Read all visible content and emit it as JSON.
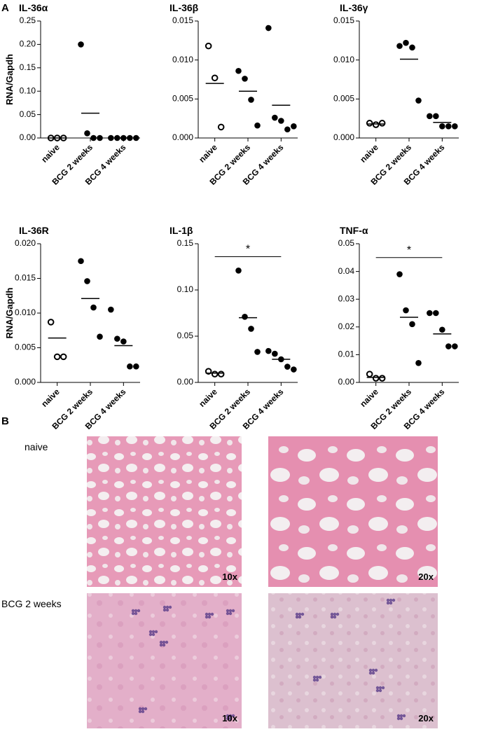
{
  "panel_labels": [
    "A",
    "B"
  ],
  "chart_data": [
    {
      "type": "dot",
      "title": "IL-36α",
      "ylabel": "RNA/Gapdh",
      "categories": [
        "naive",
        "BCG 2 weeks",
        "BCG 4 weeks"
      ],
      "hollow": [
        true,
        false,
        false
      ],
      "values": [
        [
          0,
          0,
          0
        ],
        [
          0.2,
          0.01,
          0,
          0
        ],
        [
          0,
          0,
          0,
          0,
          0
        ]
      ],
      "means": [
        0,
        0.053,
        0
      ],
      "ylim": [
        0,
        0.25
      ],
      "yticks": [
        {
          "value": 0,
          "label": "0.00"
        },
        0.05,
        {
          "value": 0.1,
          "label": "0.10"
        },
        0.15,
        {
          "value": 0.2,
          "label": "0.20"
        },
        0.25
      ]
    },
    {
      "type": "dot",
      "title": "IL-36β",
      "categories": [
        "naive",
        "BCG 2 weeks",
        "BCG 4 weeks"
      ],
      "hollow": [
        true,
        false,
        false
      ],
      "values": [
        [
          0.0118,
          0.0077,
          0.0014
        ],
        [
          0.0086,
          0.0076,
          0.0049,
          0.0016
        ],
        [
          0.0141,
          0.0026,
          0.0022,
          0.0011,
          0.0015
        ]
      ],
      "means": [
        0.007,
        0.006,
        0.0042
      ],
      "ylim": [
        0,
        0.015
      ],
      "yticks": [
        {
          "value": 0,
          "label": "0.000"
        },
        0.005,
        {
          "value": 0.01,
          "label": "0.010"
        },
        0.015
      ]
    },
    {
      "type": "dot",
      "title": "IL-36γ",
      "categories": [
        "naive",
        "BCG 2 weeks",
        "BCG 4 weeks"
      ],
      "hollow": [
        true,
        false,
        false
      ],
      "values": [
        [
          0.0019,
          0.0017,
          0.0019
        ],
        [
          0.0118,
          0.0122,
          0.0116,
          0.0048
        ],
        [
          0.0028,
          0.0028,
          0.0015,
          0.0015,
          0.0015
        ]
      ],
      "means": [
        0.0018,
        0.0101,
        0.002
      ],
      "ylim": [
        0,
        0.015
      ],
      "yticks": [
        {
          "value": 0,
          "label": "0.000"
        },
        0.005,
        {
          "value": 0.01,
          "label": "0.010"
        },
        0.015
      ]
    },
    {
      "type": "dot",
      "title": "IL-36R",
      "ylabel": "RNA/Gapdh",
      "categories": [
        "naive",
        "BCG 2 weeks",
        "BCG 4 weeks"
      ],
      "hollow": [
        true,
        false,
        false
      ],
      "values": [
        [
          0.0087,
          0.0037,
          0.0037
        ],
        [
          0.0175,
          0.0146,
          0.0108,
          0.0066
        ],
        [
          0.0105,
          0.0063,
          0.0059,
          0.0023,
          0.0023
        ]
      ],
      "means": [
        0.0064,
        0.0121,
        0.0053
      ],
      "ylim": [
        0,
        0.02
      ],
      "yticks": [
        {
          "value": 0,
          "label": "0.000"
        },
        0.005,
        {
          "value": 0.01,
          "label": "0.010"
        },
        0.015,
        {
          "value": 0.02,
          "label": "0.020"
        }
      ]
    },
    {
      "type": "dot",
      "title": "IL-1β",
      "categories": [
        "naive",
        "BCG 2 weeks",
        "BCG 4 weeks"
      ],
      "hollow": [
        true,
        false,
        false
      ],
      "values": [
        [
          0.012,
          0.009,
          0.009
        ],
        [
          0.121,
          0.071,
          0.058,
          0.033
        ],
        [
          0.034,
          0.031,
          0.025,
          0.017,
          0.014
        ]
      ],
      "means": [
        0.01,
        0.07,
        0.025
      ],
      "ylim": [
        0,
        0.15
      ],
      "yticks": [
        {
          "value": 0,
          "label": "0.00"
        },
        0.05,
        {
          "value": 0.1,
          "label": "0.10"
        },
        0.15
      ],
      "annotation": {
        "text": "*",
        "span": [
          0,
          2
        ],
        "y": 0.136
      }
    },
    {
      "type": "dot",
      "title": "TNF-α",
      "categories": [
        "naive",
        "BCG 2 weeks",
        "BCG 4 weeks"
      ],
      "hollow": [
        true,
        false,
        false
      ],
      "values": [
        [
          0.003,
          0.0015,
          0.0015
        ],
        [
          0.039,
          0.026,
          0.021,
          0.007
        ],
        [
          0.025,
          0.025,
          0.019,
          0.013,
          0.013
        ]
      ],
      "means": [
        0.0018,
        0.0235,
        0.0175
      ],
      "ylim": [
        0,
        0.05
      ],
      "yticks": [
        {
          "value": 0,
          "label": "0.00"
        },
        0.01,
        0.02,
        0.03,
        0.04,
        0.05
      ],
      "annotation": {
        "text": "*",
        "span": [
          0,
          2
        ],
        "y": 0.045
      }
    }
  ],
  "histology": {
    "rows": [
      {
        "label": "naive",
        "images": [
          {
            "label": "10x"
          },
          {
            "label": "20x"
          }
        ]
      },
      {
        "label": "BCG 2 weeks",
        "images": [
          {
            "label": "10x"
          },
          {
            "label": "20x"
          }
        ]
      }
    ]
  }
}
